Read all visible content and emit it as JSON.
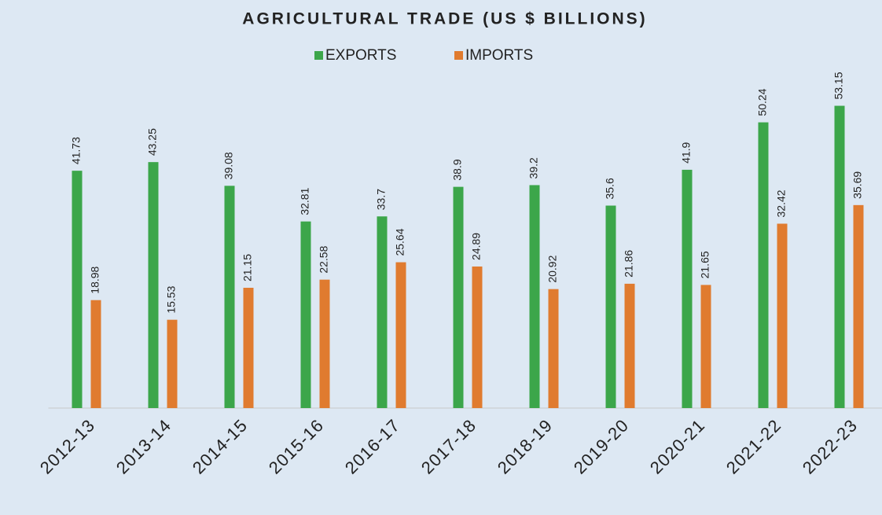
{
  "chart_data": {
    "type": "bar",
    "title": "AGRICULTURAL TRADE (US $ BILLIONS)",
    "categories": [
      "2012-13",
      "2013-14",
      "2014-15",
      "2015-16",
      "2016-17",
      "2017-18",
      "2018-19",
      "2019-20",
      "2020-21",
      "2021-22",
      "2022-23"
    ],
    "series": [
      {
        "name": "EXPORTS",
        "color": "#3ca64a",
        "values": [
          41.73,
          43.25,
          39.08,
          32.81,
          33.7,
          38.9,
          39.2,
          35.6,
          41.9,
          50.24,
          53.15
        ]
      },
      {
        "name": "IMPORTS",
        "color": "#e07b2f",
        "values": [
          18.98,
          15.53,
          21.15,
          22.58,
          25.64,
          24.89,
          20.92,
          21.86,
          21.65,
          32.42,
          35.69
        ]
      }
    ],
    "ylim": [
      0,
      60
    ],
    "legend": "top"
  }
}
